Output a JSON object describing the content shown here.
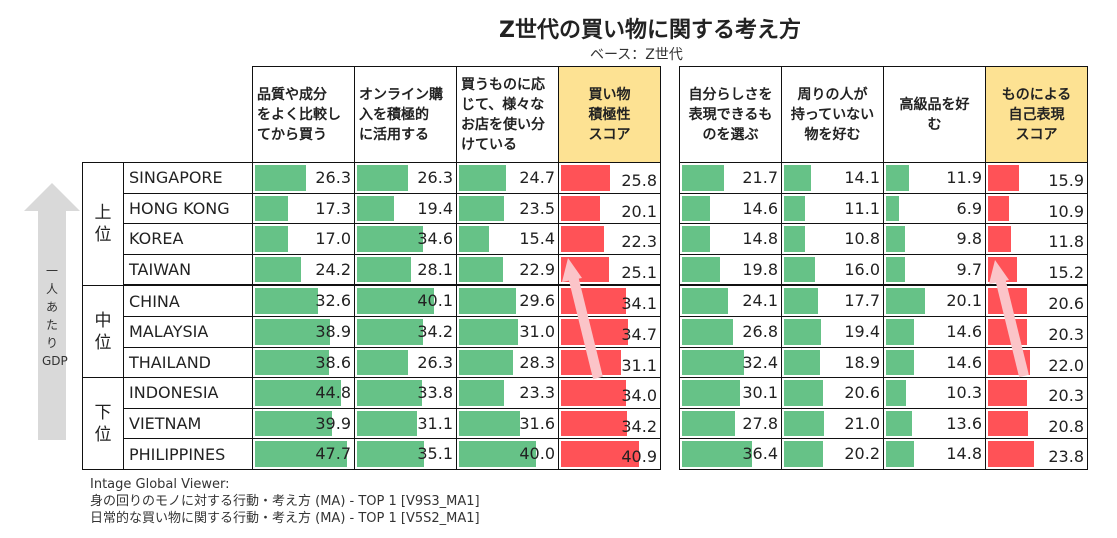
{
  "title": "Z世代の買い物に関する考え方",
  "subtitle": "ベース：Z世代",
  "axis_label": "一人あたりGDP",
  "colors": {
    "bar_green": "#66c287",
    "bar_red": "#ff5257",
    "score_header": "#fde293",
    "arrow_pink": "#fbc4c8",
    "gdp_arrow": "#d9d9d9"
  },
  "chart_data": {
    "type": "table",
    "groups": [
      {
        "label": "上位",
        "rows": 4
      },
      {
        "label": "中位",
        "rows": 3
      },
      {
        "label": "下位",
        "rows": 3
      }
    ],
    "countries": [
      "SINGAPORE",
      "HONG KONG",
      "KOREA",
      "TAIWAN",
      "CHINA",
      "MALAYSIA",
      "THAILAND",
      "INDONESIA",
      "VIETNAM",
      "PHILIPPINES"
    ],
    "tables": [
      {
        "columns": [
          {
            "header": "品質や成分をよく比較してから買う",
            "score": false,
            "values": [
              26.3,
              17.3,
              17.0,
              24.2,
              32.6,
              38.9,
              38.6,
              44.8,
              39.9,
              47.7
            ]
          },
          {
            "header": "オンライン購入を積極的に活用する",
            "score": false,
            "values": [
              26.3,
              19.4,
              34.6,
              28.1,
              40.1,
              34.2,
              26.3,
              33.8,
              31.1,
              35.1
            ]
          },
          {
            "header": "買うものに応じて、様々なお店を使い分けている",
            "score": false,
            "values": [
              24.7,
              23.5,
              15.4,
              22.9,
              29.6,
              31.0,
              28.3,
              23.3,
              31.6,
              40.0
            ]
          },
          {
            "header": "買い物積極性スコア",
            "score": true,
            "values": [
              25.8,
              20.1,
              22.3,
              25.1,
              34.1,
              34.7,
              31.1,
              34.0,
              34.2,
              40.9
            ]
          }
        ]
      },
      {
        "columns": [
          {
            "header": "自分らしさを表現できるものを選ぶ",
            "score": false,
            "values": [
              21.7,
              14.6,
              14.8,
              19.8,
              24.1,
              26.8,
              32.4,
              30.1,
              27.8,
              36.4
            ]
          },
          {
            "header": "周りの人が持っていない物を好む",
            "score": false,
            "values": [
              14.1,
              11.1,
              10.8,
              16.0,
              17.7,
              19.4,
              18.9,
              20.6,
              21.0,
              20.2
            ]
          },
          {
            "header": "高級品を好む",
            "score": false,
            "values": [
              11.9,
              6.9,
              9.8,
              9.7,
              20.1,
              14.6,
              14.6,
              10.3,
              13.6,
              14.8
            ]
          },
          {
            "header": "ものによる自己表現スコア",
            "score": true,
            "values": [
              15.9,
              10.9,
              11.8,
              15.2,
              20.6,
              20.3,
              22.0,
              20.3,
              20.8,
              23.8
            ]
          }
        ]
      }
    ]
  },
  "header_lines": {
    "t0": [
      [
        "品質や成分",
        "をよく比較し",
        "てから買う"
      ],
      [
        "オンライン購",
        "入を積極的",
        "に活用する"
      ],
      [
        "買うものに応",
        "じて、様々な",
        "お店を使い分",
        "けている"
      ],
      [
        "買い物",
        "積極性",
        "スコア"
      ]
    ],
    "t1": [
      [
        "自分らしさを",
        "表現できるも",
        "のを選ぶ"
      ],
      [
        "周りの人が",
        "持っていない",
        "物を好む"
      ],
      [
        "高級品を好",
        "む"
      ],
      [
        "ものによる",
        "自己表現",
        "スコア"
      ]
    ]
  },
  "footer": [
    "Intage Global Viewer:",
    "身の回りのモノに対する行動・考え方 (MA) - TOP 1 [V9S3_MA1]",
    "日常的な買い物に関する行動・考え方 (MA) - TOP 1 [V5S2_MA1]"
  ]
}
